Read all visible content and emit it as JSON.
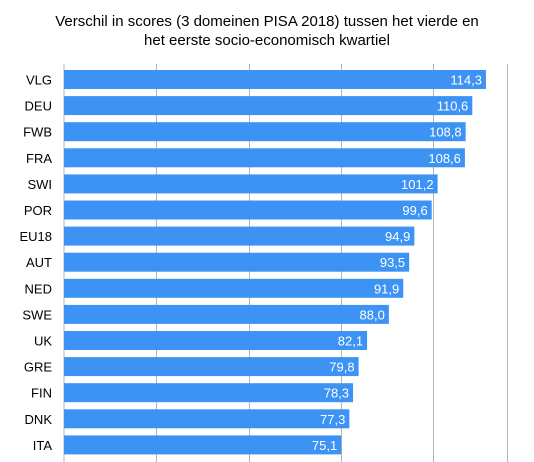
{
  "chart_data": {
    "type": "bar",
    "orientation": "horizontal",
    "title_lines": [
      "Verschil in scores (3 domeinen PISA 2018) tussen het vierde en",
      "het eerste socio-economisch kwartiel"
    ],
    "categories": [
      "VLG",
      "DEU",
      "FWB",
      "FRA",
      "SWI",
      "POR",
      "EU18",
      "AUT",
      "NED",
      "SWE",
      "UK",
      "GRE",
      "FIN",
      "DNK",
      "ITA"
    ],
    "values": [
      114.3,
      110.6,
      108.8,
      108.6,
      101.2,
      99.6,
      94.9,
      93.5,
      91.9,
      88.0,
      82.1,
      79.8,
      78.3,
      77.3,
      75.1
    ],
    "value_labels": [
      "114,3",
      "110,6",
      "108,8",
      "108,6",
      "101,2",
      "99,6",
      "94,9",
      "93,5",
      "91,9",
      "88,0",
      "82,1",
      "79,8",
      "78,3",
      "77,3",
      "75,1"
    ],
    "xlim": [
      0,
      120
    ],
    "gridlines": [
      25,
      50,
      75,
      100,
      120
    ],
    "grid": true,
    "legend": "none",
    "bar_color": "#3d93f4",
    "label_color": "#ffffff"
  }
}
